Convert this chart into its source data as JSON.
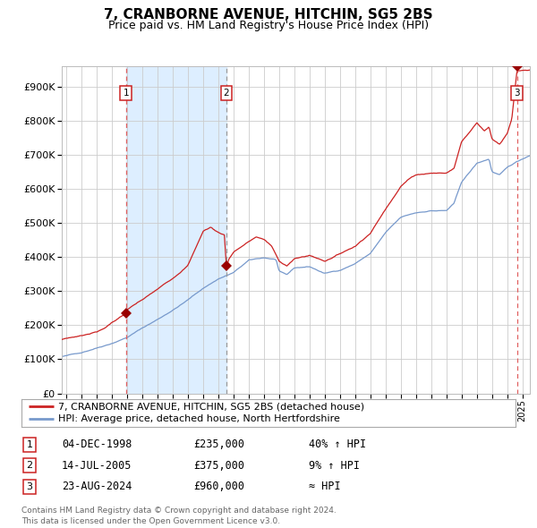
{
  "title": "7, CRANBORNE AVENUE, HITCHIN, SG5 2BS",
  "subtitle": "Price paid vs. HM Land Registry's House Price Index (HPI)",
  "title_fontsize": 11,
  "subtitle_fontsize": 9,
  "yticks": [
    0,
    100000,
    200000,
    300000,
    400000,
    500000,
    600000,
    700000,
    800000,
    900000
  ],
  "ylim": [
    0,
    960000
  ],
  "xlim_start": 1994.7,
  "xlim_end": 2025.5,
  "background_color": "#ffffff",
  "plot_bg_color": "#ffffff",
  "grid_color": "#cccccc",
  "sale_dates": [
    1998.92,
    2005.53,
    2024.64
  ],
  "sale_prices": [
    235000,
    375000,
    960000
  ],
  "sale_labels": [
    "1",
    "2",
    "3"
  ],
  "vline_color_red": "#e06060",
  "vline_color_gray": "#999999",
  "shade_start": 1998.92,
  "shade_end": 2005.53,
  "shade_color": "#ddeeff",
  "red_line_color": "#cc2222",
  "blue_line_color": "#7799cc",
  "marker_color": "#990000",
  "legend_entries": [
    "7, CRANBORNE AVENUE, HITCHIN, SG5 2BS (detached house)",
    "HPI: Average price, detached house, North Hertfordshire"
  ],
  "footer_lines": [
    "Contains HM Land Registry data © Crown copyright and database right 2024.",
    "This data is licensed under the Open Government Licence v3.0."
  ],
  "table_rows": [
    {
      "label": "1",
      "date": "04-DEC-1998",
      "price": "£235,000",
      "change": "40% ↑ HPI"
    },
    {
      "label": "2",
      "date": "14-JUL-2005",
      "price": "£375,000",
      "change": "9% ↑ HPI"
    },
    {
      "label": "3",
      "date": "23-AUG-2024",
      "price": "£960,000",
      "change": "≈ HPI"
    }
  ]
}
